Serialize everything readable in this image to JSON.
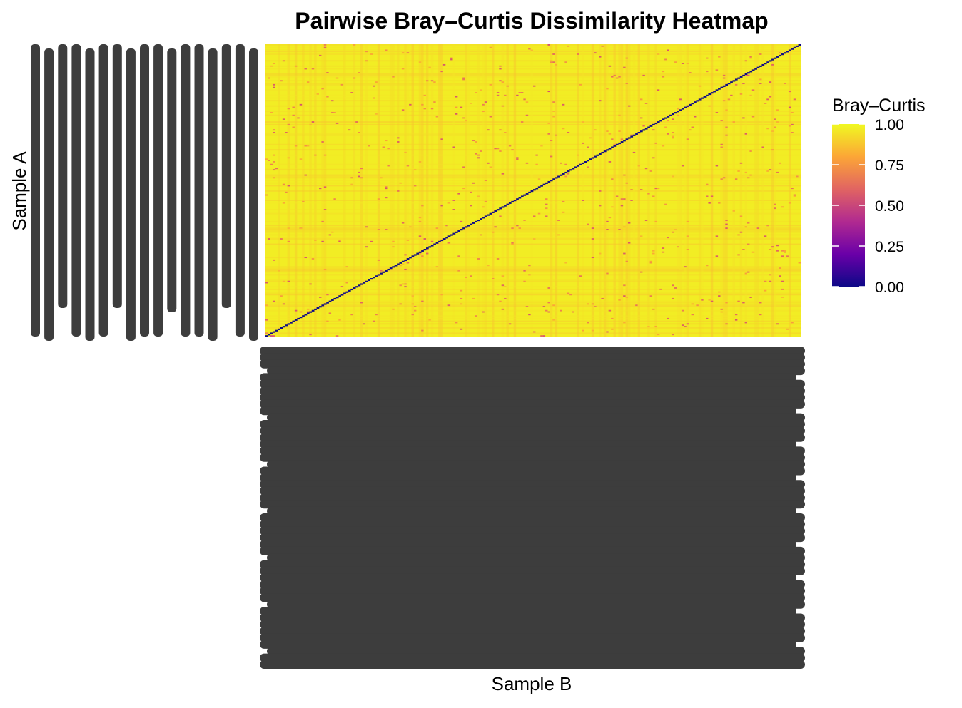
{
  "chart_data": {
    "type": "heatmap",
    "title": "Pairwise Bray–Curtis Dissimilarity Heatmap",
    "xlabel": "Sample B",
    "ylabel": "Sample A",
    "axis_tick_labels_note": "",
    "n_samples": 220,
    "value_range": [
      0,
      1
    ],
    "typical_offdiagonal_value": 0.97,
    "diagonal_value": 0.0,
    "colorscale": "plasma",
    "colorscale_stops": [
      "#0d0887",
      "#6a00a8",
      "#b12a90",
      "#e16462",
      "#fca636",
      "#f0f921"
    ],
    "legend": {
      "title": "Bray–Curtis",
      "position": "right",
      "ticks": [
        {
          "value": 1.0,
          "label": "1.00"
        },
        {
          "value": 0.75,
          "label": "0.75"
        },
        {
          "value": 0.5,
          "label": "0.50"
        },
        {
          "value": 0.25,
          "label": "0.25"
        },
        {
          "value": 0.0,
          "label": "0.00"
        }
      ]
    },
    "grid": false,
    "tick_label_color": "#3d3d3d"
  }
}
